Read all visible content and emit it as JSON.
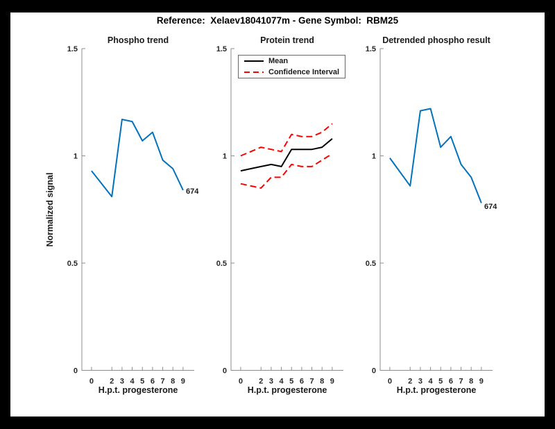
{
  "figure": {
    "title": "Reference:  Xelaev18041077m - Gene Symbol:  RBM25",
    "background": "#ffffff",
    "outer_background": "#000000",
    "axis_color": "#8c8c8c",
    "text_color": "#262626"
  },
  "chart_data": [
    {
      "type": "line",
      "title": "Phospho trend",
      "xlabel": "H.p.t. progesterone",
      "ylabel": "Normalized signal",
      "x": [
        0,
        2,
        3,
        4,
        5,
        6,
        7,
        8,
        9
      ],
      "xlim": [
        -0.95,
        10.1
      ],
      "ylim": [
        0,
        1.5
      ],
      "xticks": [
        0,
        2,
        3,
        4,
        5,
        6,
        7,
        8,
        9
      ],
      "yticks": [
        0,
        0.5,
        1,
        1.5
      ],
      "ytick_labels": [
        "0",
        "0.5",
        "1",
        "1.5"
      ],
      "grid": false,
      "series": [
        {
          "name": "phospho signal",
          "color": "#0072BD",
          "style": "solid",
          "values": [
            0.93,
            0.81,
            1.17,
            1.16,
            1.07,
            1.11,
            0.98,
            0.94,
            0.84
          ]
        }
      ],
      "end_label": "674"
    },
    {
      "type": "line",
      "title": "Protein trend",
      "xlabel": "H.p.t. progesterone",
      "x": [
        0,
        2,
        3,
        4,
        5,
        6,
        7,
        8,
        9
      ],
      "xlim": [
        -0.95,
        10.1
      ],
      "ylim": [
        0,
        1.5
      ],
      "xticks": [
        0,
        2,
        3,
        4,
        5,
        6,
        7,
        8,
        9
      ],
      "yticks": [
        0,
        0.5,
        1,
        1.5
      ],
      "ytick_labels": [
        "0",
        "0.5",
        "1",
        "1.5"
      ],
      "grid": false,
      "series": [
        {
          "name": "mean",
          "color": "#000000",
          "style": "solid",
          "values": [
            0.93,
            0.95,
            0.96,
            0.95,
            1.03,
            1.03,
            1.03,
            1.04,
            1.08
          ]
        },
        {
          "name": "confidence interval upper",
          "color": "#ff0000",
          "style": "dashed",
          "values": [
            1.0,
            1.04,
            1.03,
            1.02,
            1.1,
            1.09,
            1.09,
            1.11,
            1.15
          ]
        },
        {
          "name": "confidence interval lower",
          "color": "#ff0000",
          "style": "dashed",
          "values": [
            0.87,
            0.85,
            0.9,
            0.9,
            0.96,
            0.95,
            0.95,
            0.98,
            1.01
          ]
        }
      ],
      "legend": {
        "position": "top-left",
        "entries": [
          {
            "label": "Mean",
            "color": "#000000",
            "style": "solid"
          },
          {
            "label": "Confidence Interval",
            "color": "#ff0000",
            "style": "dashed"
          }
        ]
      }
    },
    {
      "type": "line",
      "title": "Detrended phospho result",
      "xlabel": "H.p.t. progesterone",
      "x": [
        0,
        2,
        3,
        4,
        5,
        6,
        7,
        8,
        9
      ],
      "xlim": [
        -0.95,
        10.1
      ],
      "ylim": [
        0,
        1.5
      ],
      "xticks": [
        0,
        2,
        3,
        4,
        5,
        6,
        7,
        8,
        9
      ],
      "yticks": [
        0,
        0.5,
        1,
        1.5
      ],
      "ytick_labels": [
        "0",
        "0.5",
        "1",
        "1.5"
      ],
      "grid": false,
      "series": [
        {
          "name": "detrended phospho signal",
          "color": "#0072BD",
          "style": "solid",
          "values": [
            0.99,
            0.86,
            1.21,
            1.22,
            1.04,
            1.09,
            0.96,
            0.9,
            0.78
          ]
        }
      ],
      "end_label": "674"
    }
  ]
}
